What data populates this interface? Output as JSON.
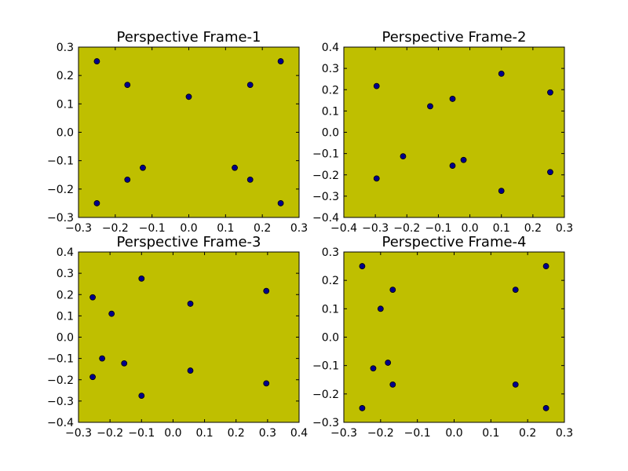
{
  "chart_data": [
    {
      "type": "scatter",
      "title": "Perspective Frame-1",
      "background": "#bfbf00",
      "marker_color": "#00008b",
      "xlim": [
        -0.3,
        0.3
      ],
      "ylim": [
        -0.3,
        0.3
      ],
      "xticks": [
        -0.3,
        -0.2,
        -0.1,
        0.0,
        0.1,
        0.2,
        0.3
      ],
      "yticks": [
        -0.3,
        -0.2,
        -0.1,
        0.0,
        0.1,
        0.2,
        0.3
      ],
      "xtick_labels": [
        "−0.3",
        "−0.2",
        "−0.1",
        "0.0",
        "0.1",
        "0.2",
        "0.3"
      ],
      "ytick_labels": [
        "−0.3",
        "−0.2",
        "−0.1",
        "0.0",
        "0.1",
        "0.2",
        "0.3"
      ],
      "points": [
        {
          "x": -0.25,
          "y": 0.25
        },
        {
          "x": 0.25,
          "y": 0.25
        },
        {
          "x": -0.167,
          "y": 0.167
        },
        {
          "x": 0.167,
          "y": 0.167
        },
        {
          "x": 0.0,
          "y": 0.125
        },
        {
          "x": -0.125,
          "y": -0.125
        },
        {
          "x": 0.125,
          "y": -0.125
        },
        {
          "x": -0.167,
          "y": -0.167
        },
        {
          "x": 0.167,
          "y": -0.167
        },
        {
          "x": -0.25,
          "y": -0.25
        },
        {
          "x": 0.25,
          "y": -0.25
        }
      ]
    },
    {
      "type": "scatter",
      "title": "Perspective Frame-2",
      "background": "#bfbf00",
      "marker_color": "#00008b",
      "xlim": [
        -0.4,
        0.3
      ],
      "ylim": [
        -0.4,
        0.4
      ],
      "xticks": [
        -0.4,
        -0.3,
        -0.2,
        -0.1,
        0.0,
        0.1,
        0.2,
        0.3
      ],
      "yticks": [
        -0.4,
        -0.3,
        -0.2,
        -0.1,
        0.0,
        0.1,
        0.2,
        0.3,
        0.4
      ],
      "xtick_labels": [
        "−0.4",
        "−0.3",
        "−0.2",
        "−0.1",
        "0.0",
        "0.1",
        "0.2",
        "0.3"
      ],
      "ytick_labels": [
        "−0.4",
        "−0.3",
        "−0.2",
        "−0.1",
        "0.0",
        "0.1",
        "0.2",
        "0.3",
        "0.4"
      ],
      "points": [
        {
          "x": -0.296,
          "y": 0.217
        },
        {
          "x": 0.1,
          "y": 0.275
        },
        {
          "x": 0.255,
          "y": 0.187
        },
        {
          "x": -0.126,
          "y": 0.122
        },
        {
          "x": -0.055,
          "y": 0.157
        },
        {
          "x": -0.212,
          "y": -0.113
        },
        {
          "x": -0.02,
          "y": -0.13
        },
        {
          "x": -0.055,
          "y": -0.157
        },
        {
          "x": -0.296,
          "y": -0.217
        },
        {
          "x": 0.255,
          "y": -0.187
        },
        {
          "x": 0.1,
          "y": -0.275
        }
      ]
    },
    {
      "type": "scatter",
      "title": "Perspective Frame-3",
      "background": "#bfbf00",
      "marker_color": "#00008b",
      "xlim": [
        -0.3,
        0.4
      ],
      "ylim": [
        -0.4,
        0.4
      ],
      "xticks": [
        -0.3,
        -0.2,
        -0.1,
        0.0,
        0.1,
        0.2,
        0.3,
        0.4
      ],
      "yticks": [
        -0.4,
        -0.3,
        -0.2,
        -0.1,
        0.0,
        0.1,
        0.2,
        0.3,
        0.4
      ],
      "xtick_labels": [
        "−0.3",
        "−0.2",
        "−0.1",
        "0.0",
        "0.1",
        "0.2",
        "0.3",
        "0.4"
      ],
      "ytick_labels": [
        "−0.4",
        "−0.3",
        "−0.2",
        "−0.1",
        "0.0",
        "0.1",
        "0.2",
        "0.3",
        "0.4"
      ],
      "points": [
        {
          "x": -0.255,
          "y": 0.187
        },
        {
          "x": -0.1,
          "y": 0.275
        },
        {
          "x": 0.055,
          "y": 0.157
        },
        {
          "x": 0.296,
          "y": 0.217
        },
        {
          "x": -0.195,
          "y": 0.11
        },
        {
          "x": -0.225,
          "y": -0.1
        },
        {
          "x": -0.155,
          "y": -0.123
        },
        {
          "x": 0.055,
          "y": -0.157
        },
        {
          "x": -0.255,
          "y": -0.187
        },
        {
          "x": 0.296,
          "y": -0.217
        },
        {
          "x": -0.1,
          "y": -0.275
        }
      ]
    },
    {
      "type": "scatter",
      "title": "Perspective Frame-4",
      "background": "#bfbf00",
      "marker_color": "#00008b",
      "xlim": [
        -0.3,
        0.3
      ],
      "ylim": [
        -0.3,
        0.3
      ],
      "xticks": [
        -0.3,
        -0.2,
        -0.1,
        0.0,
        0.1,
        0.2,
        0.3
      ],
      "yticks": [
        -0.3,
        -0.2,
        -0.1,
        0.0,
        0.1,
        0.2,
        0.3
      ],
      "xtick_labels": [
        "−0.3",
        "−0.2",
        "−0.1",
        "0.0",
        "0.1",
        "0.2",
        "0.3"
      ],
      "ytick_labels": [
        "−0.3",
        "−0.2",
        "−0.1",
        "0.0",
        "0.1",
        "0.2",
        "0.3"
      ],
      "points": [
        {
          "x": -0.25,
          "y": 0.25
        },
        {
          "x": 0.25,
          "y": 0.25
        },
        {
          "x": -0.167,
          "y": 0.167
        },
        {
          "x": 0.167,
          "y": 0.167
        },
        {
          "x": -0.2,
          "y": 0.1
        },
        {
          "x": -0.22,
          "y": -0.11
        },
        {
          "x": -0.18,
          "y": -0.09
        },
        {
          "x": -0.167,
          "y": -0.167
        },
        {
          "x": 0.167,
          "y": -0.167
        },
        {
          "x": -0.25,
          "y": -0.25
        },
        {
          "x": 0.25,
          "y": -0.25
        }
      ]
    }
  ]
}
